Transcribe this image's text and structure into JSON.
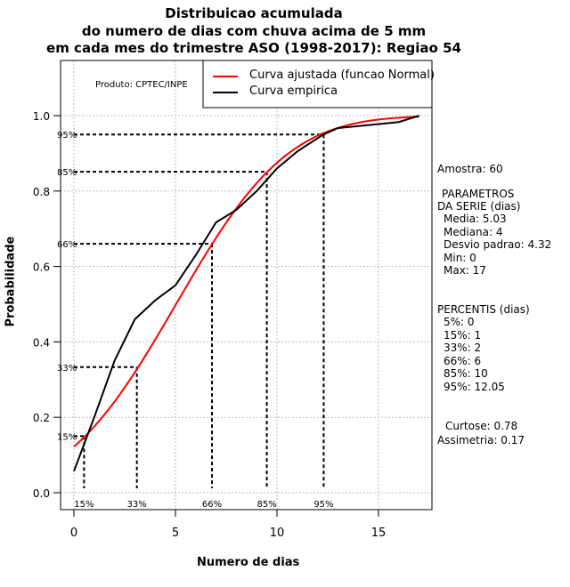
{
  "chart_data": {
    "type": "line",
    "title": [
      "Distribuicao acumulada",
      "do numero de dias com chuva acima de 5 mm",
      "em cada mes do trimestre ASO (1998-2017): Regiao 54"
    ],
    "xlabel": "Numero de dias",
    "ylabel": "Probabilidade",
    "xlim": [
      -0.7,
      17.7
    ],
    "ylim": [
      -0.05,
      1.15
    ],
    "xticks": [
      0,
      5,
      10,
      15
    ],
    "yticks": [
      "0.0",
      "0.2",
      "0.4",
      "0.6",
      "0.8",
      "1.0"
    ],
    "grid": true,
    "product": "Produto: CPTEC/INPE",
    "legend": {
      "position": "top-right",
      "entries": [
        {
          "label": "Curva ajustada (funcao Normal)",
          "color": "#ff0000"
        },
        {
          "label": "Curva empirica",
          "color": "#000000"
        }
      ]
    },
    "normal": {
      "mean": 5.03,
      "sd": 4.32,
      "xrange": [
        0,
        17
      ]
    },
    "empirical": {
      "x": [
        0,
        1,
        2,
        3,
        4,
        5,
        6,
        7,
        8,
        9,
        10,
        11,
        12,
        12.3,
        13,
        16,
        17
      ],
      "y": [
        0.057,
        0.2,
        0.35,
        0.46,
        0.51,
        0.55,
        0.63,
        0.717,
        0.75,
        0.8,
        0.86,
        0.905,
        0.94,
        0.95,
        0.967,
        0.983,
        1.0
      ]
    },
    "percentiles": [
      {
        "label": "15%",
        "p": 0.15,
        "x": 0.5
      },
      {
        "label": "33%",
        "p": 0.333,
        "x": 3.1
      },
      {
        "label": "66%",
        "p": 0.66,
        "x": 6.8
      },
      {
        "label": "85%",
        "p": 0.851,
        "x": 9.5
      },
      {
        "label": "95%",
        "p": 0.95,
        "x": 12.3
      }
    ]
  },
  "side": {
    "amostra": "Amostra: 60",
    "param_title1": "PARAMETROS",
    "param_title2": "DA SERIE (dias)",
    "params": [
      "Media: 5.03",
      "Mediana: 4",
      "Desvio padrao: 4.32",
      "Min: 0",
      "Max: 17"
    ],
    "perc_title": "PERCENTIS (dias)",
    "percs": [
      "5%: 0",
      "15%: 1",
      "33%: 2",
      "66%: 6",
      "85%: 10",
      "95%: 12.05"
    ],
    "curtose": "Curtose: 0.78",
    "assimetria": "Assimetria: 0.17"
  }
}
